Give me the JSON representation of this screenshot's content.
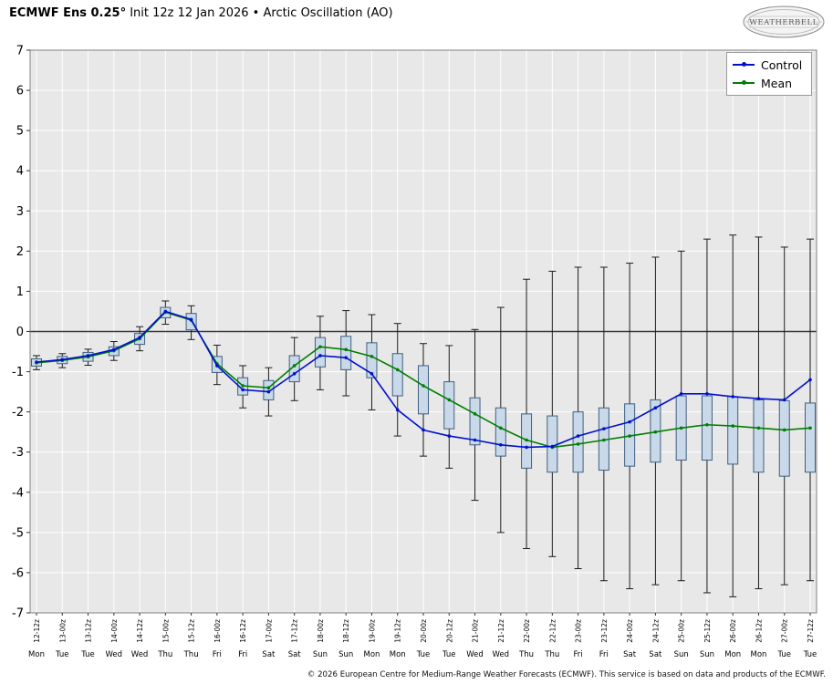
{
  "header": {
    "title_bold": "ECMWF Ens 0.25°",
    "title_rest": " Init 12z 12 Jan 2026 • Arctic Oscillation (AO)",
    "logo_text": "WEATHERBELL"
  },
  "footer": {
    "copyright": "© 2026 European Centre for Medium-Range Weather Forecasts (ECMWF). This service is based on data and products of the ECMWF."
  },
  "chart_data": {
    "type": "box-whisker-with-lines",
    "title": "ECMWF Ens 0.25 Init 12z 12 Jan 2026 - Arctic Oscillation (AO)",
    "ylabel": "",
    "xlabel": "",
    "ylim": [
      -7,
      7
    ],
    "ytick_interval": 1,
    "grid": true,
    "zero_line": true,
    "legend_position": "upper right",
    "x_labels": [
      "12-12z",
      "13-00z",
      "13-12z",
      "14-00z",
      "14-12z",
      "15-00z",
      "15-12z",
      "16-00z",
      "16-12z",
      "17-00z",
      "17-12z",
      "18-00z",
      "18-12z",
      "19-00z",
      "19-12z",
      "20-00z",
      "20-12z",
      "21-00z",
      "21-12z",
      "22-00z",
      "22-12z",
      "23-00z",
      "23-12z",
      "24-00z",
      "24-12z",
      "25-00z",
      "25-12z",
      "26-00z",
      "26-12z",
      "27-00z",
      "27-12z"
    ],
    "day_labels": [
      "Mon",
      "Tue",
      "Tue",
      "Wed",
      "Wed",
      "Thu",
      "Thu",
      "Fri",
      "Fri",
      "Sat",
      "Sat",
      "Sun",
      "Sun",
      "Mon",
      "Mon",
      "Tue",
      "Tue",
      "Wed",
      "Wed",
      "Thu",
      "Thu",
      "Fri",
      "Fri",
      "Sat",
      "Sat",
      "Sun",
      "Sun",
      "Mon",
      "Mon",
      "Tue",
      "Tue"
    ],
    "series": [
      {
        "name": "Control",
        "color": "#0011cc",
        "values": [
          -0.76,
          -0.7,
          -0.6,
          -0.45,
          -0.15,
          0.5,
          0.3,
          -0.85,
          -1.45,
          -1.5,
          -1.05,
          -0.6,
          -0.65,
          -1.05,
          -1.95,
          -2.45,
          -2.6,
          -2.7,
          -2.82,
          -2.88,
          -2.86,
          -2.6,
          -2.42,
          -2.25,
          -1.9,
          -1.55,
          -1.55,
          -1.62,
          -1.67,
          -1.7,
          -1.2
        ]
      },
      {
        "name": "Mean",
        "color": "#007f00",
        "values": [
          -0.78,
          -0.72,
          -0.63,
          -0.48,
          -0.18,
          0.48,
          0.28,
          -0.8,
          -1.35,
          -1.4,
          -0.85,
          -0.38,
          -0.45,
          -0.62,
          -0.95,
          -1.35,
          -1.7,
          -2.05,
          -2.4,
          -2.7,
          -2.88,
          -2.8,
          -2.7,
          -2.6,
          -2.5,
          -2.4,
          -2.32,
          -2.35,
          -2.4,
          -2.45,
          -2.4
        ]
      }
    ],
    "boxes": {
      "fill": "#c9d9e9",
      "stroke": "#3e5f7e",
      "box_top": [
        -0.68,
        -0.62,
        -0.52,
        -0.38,
        -0.05,
        0.6,
        0.45,
        -0.62,
        -1.15,
        -1.22,
        -0.6,
        -0.15,
        -0.12,
        -0.28,
        -0.55,
        -0.85,
        -1.25,
        -1.65,
        -1.9,
        -2.05,
        -2.1,
        -2.0,
        -1.9,
        -1.8,
        -1.7,
        -1.6,
        -1.6,
        -1.62,
        -1.7,
        -1.72,
        -1.78
      ],
      "box_bottom": [
        -0.86,
        -0.8,
        -0.74,
        -0.6,
        -0.32,
        0.34,
        0.04,
        -1.02,
        -1.58,
        -1.7,
        -1.25,
        -0.88,
        -0.95,
        -1.15,
        -1.6,
        -2.05,
        -2.42,
        -2.82,
        -3.1,
        -3.4,
        -3.5,
        -3.5,
        -3.45,
        -3.35,
        -3.25,
        -3.2,
        -3.2,
        -3.3,
        -3.5,
        -3.6,
        -3.5
      ],
      "whisker_high": [
        -0.6,
        -0.55,
        -0.44,
        -0.25,
        0.12,
        0.76,
        0.64,
        -0.34,
        -0.85,
        -0.9,
        -0.15,
        0.38,
        0.52,
        0.42,
        0.2,
        -0.3,
        -0.35,
        0.05,
        0.6,
        1.3,
        1.5,
        1.6,
        1.6,
        1.7,
        1.85,
        2.0,
        2.3,
        2.4,
        2.35,
        2.1,
        2.3
      ],
      "whisker_low": [
        -0.95,
        -0.9,
        -0.84,
        -0.72,
        -0.48,
        0.18,
        -0.2,
        -1.32,
        -1.9,
        -2.1,
        -1.72,
        -1.45,
        -1.6,
        -1.95,
        -2.6,
        -3.1,
        -3.4,
        -4.2,
        -5.0,
        -5.4,
        -5.6,
        -5.9,
        -6.2,
        -6.4,
        -6.3,
        -6.2,
        -6.5,
        -6.6,
        -6.4,
        -6.3,
        -6.2
      ]
    },
    "colors": {
      "plot_bg": "#e8e8e8",
      "grid": "#ffffff",
      "zero_line": "#3a3a3a",
      "whisker": "#1a1a1a",
      "axis_border": "#808080",
      "tick": "#333333"
    }
  }
}
